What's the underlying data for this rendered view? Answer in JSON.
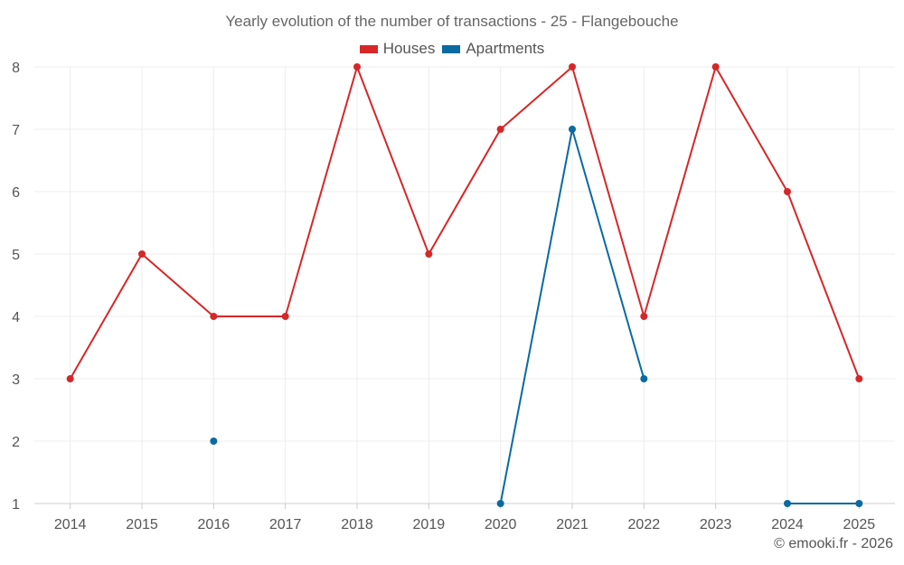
{
  "chart_data": {
    "type": "line",
    "title": "Yearly evolution of the number of transactions - 25 - Flangebouche",
    "categories": [
      "2014",
      "2015",
      "2016",
      "2017",
      "2018",
      "2019",
      "2020",
      "2021",
      "2022",
      "2023",
      "2024",
      "2025"
    ],
    "ylim": [
      1,
      8
    ],
    "yticks": [
      "1",
      "2",
      "3",
      "4",
      "5",
      "6",
      "7",
      "8"
    ],
    "grid": true,
    "legend_position": "top-center",
    "series": [
      {
        "name": "Houses",
        "color": "#d62728",
        "values": [
          3,
          5,
          4,
          4,
          8,
          5,
          7,
          8,
          4,
          8,
          6,
          3
        ]
      },
      {
        "name": "Apartments",
        "color": "#0a6aa1",
        "values": [
          null,
          null,
          2,
          null,
          null,
          null,
          1,
          7,
          3,
          null,
          1,
          1
        ]
      }
    ],
    "xlabel": "",
    "ylabel": ""
  },
  "credit": "© emooki.fr - 2026"
}
